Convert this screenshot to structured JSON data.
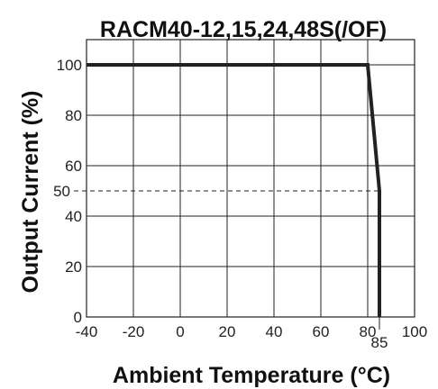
{
  "chart_data": {
    "type": "line",
    "title": "RACM40-12,15,24,48S(/OF)",
    "xlabel": "Ambient Temperature (°C)",
    "ylabel": "Output Current (%)",
    "xlim": [
      -40,
      100
    ],
    "ylim": [
      0,
      110
    ],
    "x_ticks": [
      -40,
      -20,
      0,
      20,
      40,
      60,
      80,
      100
    ],
    "x_tick_labels": [
      "-40",
      "-20",
      "0",
      "20",
      "40",
      "60",
      "80",
      "100"
    ],
    "y_ticks": [
      0,
      20,
      40,
      60,
      80,
      100
    ],
    "y_tick_labels": [
      "0",
      "20",
      "40",
      "60",
      "80",
      "100"
    ],
    "grid": true,
    "series": [
      {
        "x": [
          -40,
          80,
          85,
          85
        ],
        "y": [
          100,
          100,
          50,
          0
        ]
      }
    ],
    "annotations": {
      "ref_y": 50,
      "ref_y_label": "50",
      "ref_x": 85,
      "ref_x_label": "85"
    },
    "colors": {
      "line": "#222222",
      "grid": "#222222"
    }
  }
}
